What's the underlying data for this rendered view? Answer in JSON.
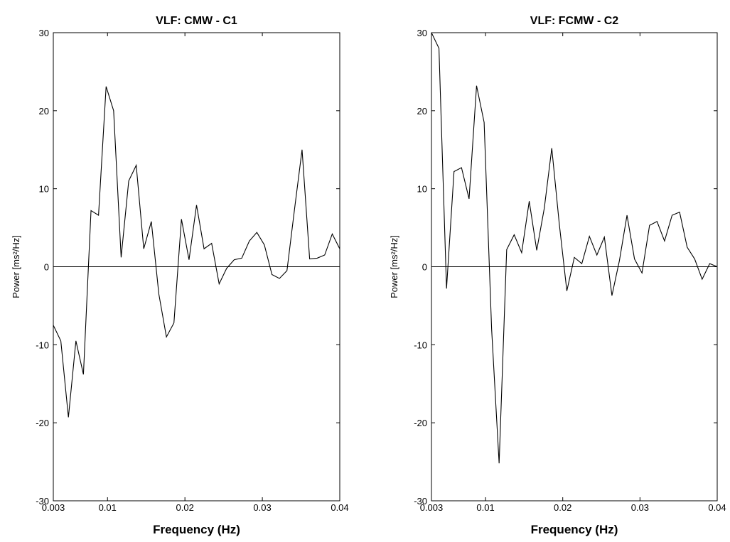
{
  "chart_data": [
    {
      "type": "line",
      "title": "VLF: CMW - C1",
      "xlabel": "Frequency (Hz)",
      "ylabel": "Power [ms²/Hz]",
      "color": "#000000",
      "x": [
        0.003,
        0.00397,
        0.00495,
        0.00592,
        0.00689,
        0.00787,
        0.00884,
        0.00982,
        0.01079,
        0.01176,
        0.01274,
        0.01371,
        0.01468,
        0.01566,
        0.01663,
        0.01761,
        0.01858,
        0.01955,
        0.02053,
        0.0215,
        0.02247,
        0.02345,
        0.02442,
        0.02539,
        0.02637,
        0.02734,
        0.02832,
        0.02929,
        0.03026,
        0.03124,
        0.03221,
        0.03318,
        0.03416,
        0.03513,
        0.03611,
        0.03708,
        0.03805,
        0.03903,
        0.04
      ],
      "values": [
        -7.5,
        -9.5,
        -19.3,
        -9.5,
        -13.8,
        7.2,
        6.6,
        23.1,
        20,
        1.2,
        11,
        13,
        2.3,
        5.8,
        -3.5,
        -9,
        -7.2,
        6.1,
        0.9,
        7.9,
        2.3,
        3,
        -2.2,
        -0.2,
        0.9,
        1.1,
        3.3,
        4.4,
        2.8,
        -1,
        -1.5,
        -0.5,
        7.4,
        15,
        1,
        1.1,
        1.5,
        4.2,
        2.3
      ],
      "xlim": [
        0.003,
        0.04
      ],
      "xticks": [
        0.003,
        0.01,
        0.02,
        0.03,
        0.04
      ],
      "ylim": [
        -30,
        30
      ],
      "yticks": [
        -30,
        -20,
        -10,
        0,
        10,
        20,
        30
      ]
    },
    {
      "type": "line",
      "title": "VLF: FCMW - C2",
      "xlabel": "Frequency (Hz)",
      "ylabel": "Power [ms²/Hz]",
      "color": "#000000",
      "x": [
        0.003,
        0.00397,
        0.00495,
        0.00592,
        0.00689,
        0.00787,
        0.00884,
        0.00982,
        0.01079,
        0.01176,
        0.01274,
        0.01371,
        0.01468,
        0.01566,
        0.01663,
        0.01761,
        0.01858,
        0.01955,
        0.02053,
        0.0215,
        0.02247,
        0.02345,
        0.02442,
        0.02539,
        0.02637,
        0.02734,
        0.02832,
        0.02929,
        0.03026,
        0.03124,
        0.03221,
        0.03318,
        0.03416,
        0.03513,
        0.03611,
        0.03708,
        0.03805,
        0.03903,
        0.04
      ],
      "values": [
        30,
        28,
        -2.8,
        12.2,
        12.7,
        8.7,
        23.2,
        18.5,
        -8,
        -25.2,
        2.2,
        4.1,
        1.8,
        8.4,
        2.1,
        7.5,
        15.2,
        5.5,
        -3.1,
        1.2,
        0.4,
        3.9,
        1.5,
        3.8,
        -3.7,
        0.8,
        6.6,
        1,
        -0.8,
        5.3,
        5.8,
        3.3,
        6.6,
        7,
        2.5,
        1,
        -1.6,
        0.4,
        0
      ],
      "xlim": [
        0.003,
        0.04
      ],
      "xticks": [
        0.003,
        0.01,
        0.02,
        0.03,
        0.04
      ],
      "ylim": [
        -30,
        30
      ],
      "yticks": [
        -30,
        -20,
        -10,
        0,
        10,
        20,
        30
      ]
    }
  ]
}
